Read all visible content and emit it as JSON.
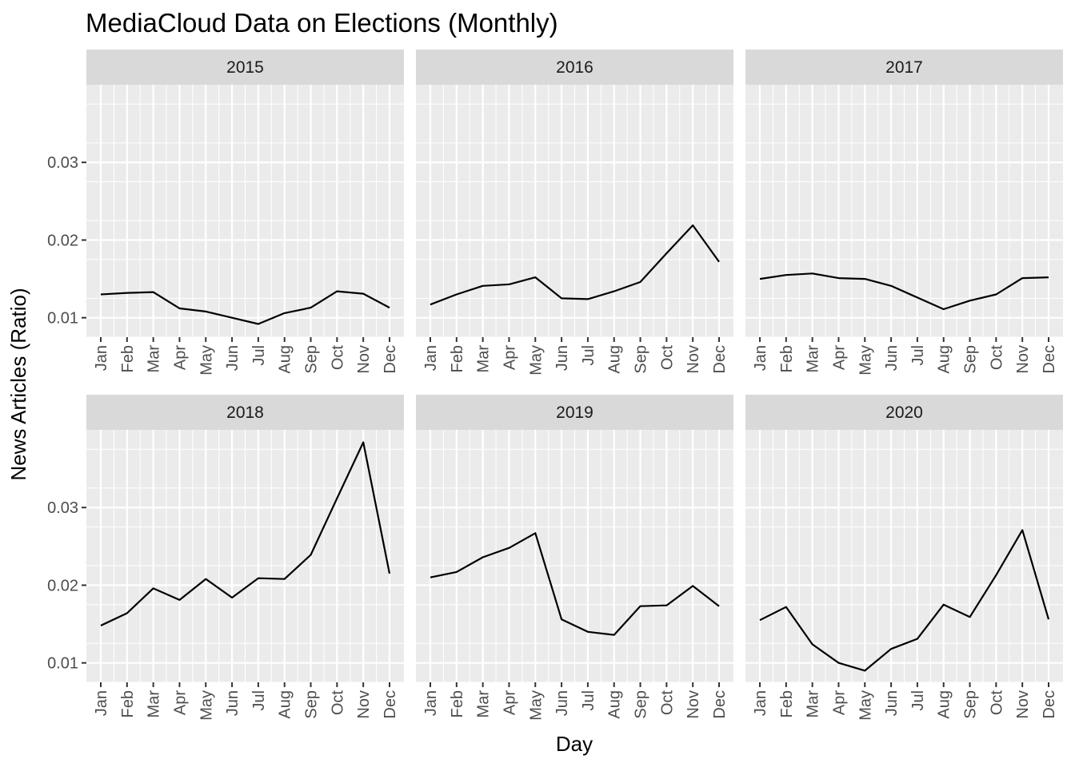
{
  "chart_data": {
    "type": "line",
    "title": "MediaCloud Data on Elections (Monthly)",
    "xlabel": "Day",
    "ylabel": "News Articles (Ratio)",
    "categories": [
      "Jan",
      "Feb",
      "Mar",
      "Apr",
      "May",
      "Jun",
      "Jul",
      "Aug",
      "Sep",
      "Oct",
      "Nov",
      "Dec"
    ],
    "y_ticks": [
      "0.01",
      "0.02",
      "0.03"
    ],
    "ylim": [
      0.0075,
      0.04
    ],
    "grid": true,
    "legend": "none",
    "facet_by": "year",
    "colors": {
      "panel_bg": "#ebebeb",
      "grid": "#ffffff",
      "strip_bg": "#d9d9d9",
      "line": "#000000",
      "tick": "#333333"
    },
    "panels": [
      {
        "label": "2015",
        "values": [
          0.013,
          0.0132,
          0.0133,
          0.0112,
          0.0108,
          0.01,
          0.0092,
          0.0106,
          0.0113,
          0.0134,
          0.0131,
          0.0113
        ]
      },
      {
        "label": "2016",
        "values": [
          0.0117,
          0.013,
          0.0141,
          0.0143,
          0.0152,
          0.0125,
          0.0124,
          0.0134,
          0.0146,
          0.0183,
          0.0219,
          0.0172
        ]
      },
      {
        "label": "2017",
        "values": [
          0.015,
          0.0155,
          0.0157,
          0.0151,
          0.015,
          0.0141,
          0.0126,
          0.0111,
          0.0122,
          0.013,
          0.0151,
          0.0152
        ]
      },
      {
        "label": "2018",
        "values": [
          0.0148,
          0.0164,
          0.0196,
          0.0181,
          0.0208,
          0.0184,
          0.0209,
          0.0208,
          0.0239,
          0.0312,
          0.0384,
          0.0215
        ]
      },
      {
        "label": "2019",
        "values": [
          0.021,
          0.0217,
          0.0236,
          0.0248,
          0.0267,
          0.0156,
          0.014,
          0.0136,
          0.0173,
          0.0174,
          0.0199,
          0.0173
        ]
      },
      {
        "label": "2020",
        "values": [
          0.0155,
          0.0172,
          0.0124,
          0.01,
          0.009,
          0.0118,
          0.0131,
          0.0175,
          0.0159,
          0.0213,
          0.0271,
          0.0156
        ]
      }
    ]
  }
}
